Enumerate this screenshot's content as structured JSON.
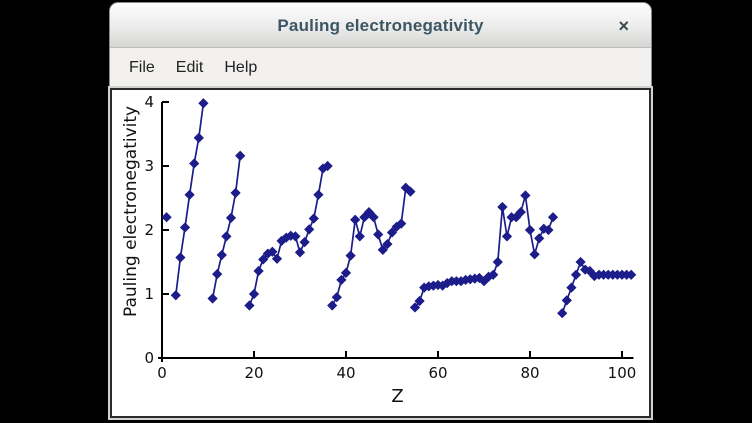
{
  "window": {
    "title": "Pauling electronegativity",
    "close_label": "×"
  },
  "menu": {
    "items": [
      {
        "label": "File"
      },
      {
        "label": "Edit"
      },
      {
        "label": "Help"
      }
    ]
  },
  "chart_data": {
    "type": "line",
    "title": "",
    "xlabel": "Z",
    "ylabel": "Pauling electronegativity",
    "xlim": [
      0,
      102.5
    ],
    "ylim": [
      0,
      4
    ],
    "x_major_ticks": [
      0,
      20,
      40,
      60,
      80,
      100
    ],
    "y_major_ticks": [
      0,
      1,
      2,
      3,
      4
    ],
    "grid": false,
    "legend": "none",
    "marker": "diamond",
    "color": "#1c1c8a",
    "missing_z": [
      2,
      10,
      18,
      86
    ],
    "series": [
      {
        "name": "Pauling electronegativity",
        "segments": [
          [
            [
              1,
              2.2
            ]
          ],
          [
            [
              3,
              0.98
            ],
            [
              4,
              1.57
            ],
            [
              5,
              2.04
            ],
            [
              6,
              2.55
            ],
            [
              7,
              3.04
            ],
            [
              8,
              3.44
            ],
            [
              9,
              3.98
            ]
          ],
          [
            [
              11,
              0.93
            ],
            [
              12,
              1.31
            ],
            [
              13,
              1.61
            ],
            [
              14,
              1.9
            ],
            [
              15,
              2.19
            ],
            [
              16,
              2.58
            ],
            [
              17,
              3.16
            ]
          ],
          [
            [
              19,
              0.82
            ],
            [
              20,
              1.0
            ],
            [
              21,
              1.36
            ],
            [
              22,
              1.54
            ],
            [
              23,
              1.63
            ],
            [
              24,
              1.66
            ],
            [
              25,
              1.55
            ],
            [
              26,
              1.83
            ],
            [
              27,
              1.88
            ],
            [
              28,
              1.91
            ],
            [
              29,
              1.9
            ],
            [
              30,
              1.65
            ],
            [
              31,
              1.81
            ],
            [
              32,
              2.01
            ],
            [
              33,
              2.18
            ],
            [
              34,
              2.55
            ],
            [
              35,
              2.96
            ],
            [
              36,
              3.0
            ]
          ],
          [
            [
              37,
              0.82
            ],
            [
              38,
              0.95
            ],
            [
              39,
              1.22
            ],
            [
              40,
              1.33
            ],
            [
              41,
              1.6
            ],
            [
              42,
              2.16
            ],
            [
              43,
              1.9
            ],
            [
              44,
              2.2
            ],
            [
              45,
              2.28
            ],
            [
              46,
              2.2
            ],
            [
              47,
              1.93
            ],
            [
              48,
              1.69
            ],
            [
              49,
              1.78
            ],
            [
              50,
              1.96
            ],
            [
              51,
              2.05
            ],
            [
              52,
              2.1
            ],
            [
              53,
              2.66
            ],
            [
              54,
              2.6
            ]
          ],
          [
            [
              55,
              0.79
            ],
            [
              56,
              0.89
            ],
            [
              57,
              1.1
            ],
            [
              58,
              1.12
            ],
            [
              59,
              1.13
            ],
            [
              60,
              1.14
            ],
            [
              61,
              1.13
            ],
            [
              62,
              1.17
            ],
            [
              63,
              1.2
            ],
            [
              64,
              1.2
            ],
            [
              65,
              1.2
            ],
            [
              66,
              1.22
            ],
            [
              67,
              1.23
            ],
            [
              68,
              1.24
            ],
            [
              69,
              1.25
            ],
            [
              70,
              1.2
            ],
            [
              71,
              1.27
            ],
            [
              72,
              1.3
            ],
            [
              73,
              1.5
            ],
            [
              74,
              2.36
            ],
            [
              75,
              1.9
            ],
            [
              76,
              2.2
            ],
            [
              77,
              2.2
            ],
            [
              78,
              2.28
            ],
            [
              79,
              2.54
            ],
            [
              80,
              2.0
            ],
            [
              81,
              1.62
            ],
            [
              82,
              1.87
            ],
            [
              83,
              2.02
            ],
            [
              84,
              2.0
            ],
            [
              85,
              2.2
            ]
          ],
          [
            [
              87,
              0.7
            ],
            [
              88,
              0.9
            ],
            [
              89,
              1.1
            ],
            [
              90,
              1.3
            ],
            [
              91,
              1.5
            ],
            [
              92,
              1.38
            ],
            [
              93,
              1.36
            ],
            [
              94,
              1.28
            ],
            [
              95,
              1.3
            ],
            [
              96,
              1.3
            ],
            [
              97,
              1.3
            ],
            [
              98,
              1.3
            ],
            [
              99,
              1.3
            ],
            [
              100,
              1.3
            ],
            [
              101,
              1.3
            ],
            [
              102,
              1.3
            ]
          ]
        ]
      }
    ]
  }
}
